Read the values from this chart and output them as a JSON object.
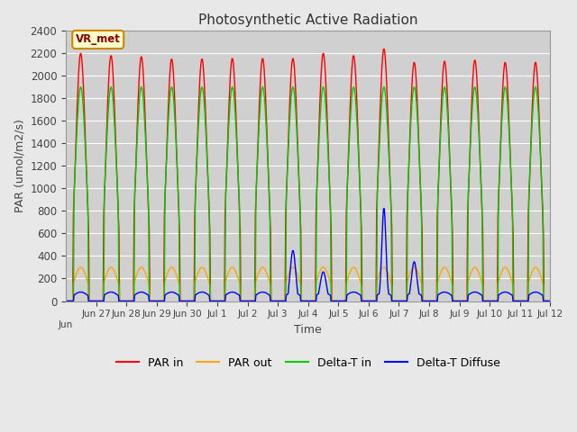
{
  "title": "Photosynthetic Active Radiation",
  "ylabel": "PAR (umol/m2/s)",
  "xlabel": "Time",
  "ylim": [
    0,
    2400
  ],
  "background_color": "#e8e8e8",
  "plot_bg_color": "#d0d0d0",
  "annotation_text": "VR_met",
  "annotation_bg": "#ffffcc",
  "annotation_border": "#cc8800",
  "tick_labels": [
    "Jun 27",
    "Jun 28",
    "Jun 29",
    "Jun 30",
    "Jul 1",
    "Jul 2",
    "Jul 3",
    "Jul 4",
    "Jul 5",
    "Jul 6",
    "Jul 7",
    "Jul 8",
    "Jul 9",
    "Jul 10",
    "Jul 11",
    "Jul 12"
  ],
  "legend_labels": [
    "PAR in",
    "PAR out",
    "Delta-T in",
    "Delta-T Diffuse"
  ],
  "legend_colors": [
    "#ff0000",
    "#ffa500",
    "#00cc00",
    "#0000ff"
  ],
  "par_in_peaks": [
    2200,
    2180,
    2170,
    2150,
    2150,
    2155,
    2155,
    2155,
    2200,
    2180,
    2240,
    2120,
    2130,
    2140,
    2120,
    2120
  ],
  "num_days": 16
}
